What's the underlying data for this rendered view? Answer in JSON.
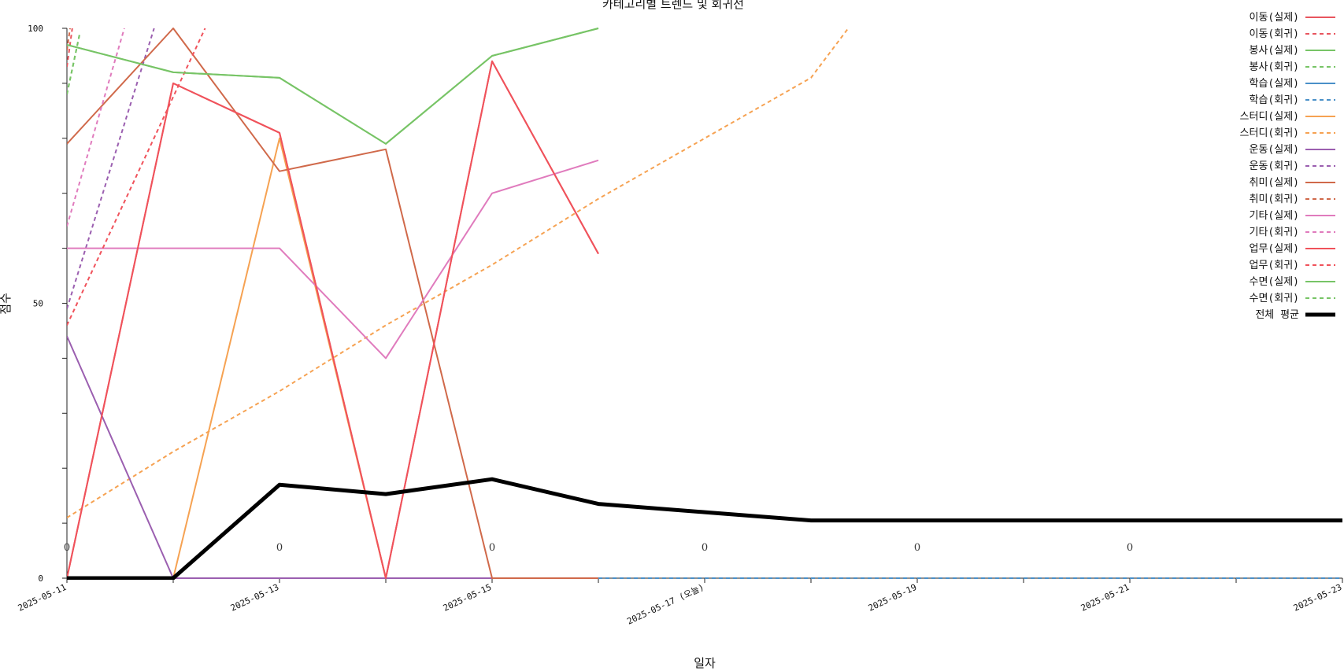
{
  "chart_data": {
    "type": "line",
    "title": "카테고리별 트렌드 및 회귀선",
    "xlabel": "일자",
    "ylabel": "점수",
    "ylim": [
      0,
      100
    ],
    "y_ticks": [
      0,
      50,
      100
    ],
    "x_tick_dates": [
      "2025-05-11",
      "2025-05-12",
      "2025-05-13",
      "2025-05-14",
      "2025-05-15",
      "2025-05-16",
      "2025-05-17",
      "2025-05-18",
      "2025-05-19",
      "2025-05-20",
      "2025-05-21",
      "2025-05-22",
      "2025-05-23"
    ],
    "x_tick_labels": [
      "2025-05-11",
      "2025-05-13",
      "2025-05-15",
      "2025-05-17 (오늘)",
      "2025-05-19",
      "2025-05-21",
      "2025-05-23"
    ],
    "x_labeled_dates": [
      "2025-05-11",
      "2025-05-13",
      "2025-05-15",
      "2025-05-17",
      "2025-05-19",
      "2025-05-21",
      "2025-05-23"
    ],
    "annotations": [
      {
        "x": "2025-05-11",
        "y": 5,
        "text": "0"
      },
      {
        "x": "2025-05-13",
        "y": 5,
        "text": "0"
      },
      {
        "x": "2025-05-15",
        "y": 5,
        "text": "0"
      },
      {
        "x": "2025-05-17",
        "y": 5,
        "text": "0"
      },
      {
        "x": "2025-05-19",
        "y": 5,
        "text": "0"
      },
      {
        "x": "2025-05-21",
        "y": 5,
        "text": "0"
      }
    ],
    "legend_position": "top-right",
    "series": [
      {
        "name": "이동(실제)",
        "color": "#e8555e",
        "style": "solid",
        "width": 2,
        "points": [
          [
            "2025-05-11",
            0
          ],
          [
            "2025-05-12",
            90
          ],
          [
            "2025-05-13",
            81
          ],
          [
            "2025-05-14",
            0
          ],
          [
            "2025-05-15",
            94
          ],
          [
            "2025-05-16",
            59
          ]
        ]
      },
      {
        "name": "이동(회귀)",
        "color": "#e8555e",
        "style": "dashed",
        "width": 2,
        "points": [
          [
            "2025-05-11",
            93
          ],
          [
            "2025-05-11.05",
            100
          ]
        ]
      },
      {
        "name": "봉사(실제)",
        "color": "#77c466",
        "style": "solid",
        "width": 2,
        "points": [
          [
            "2025-05-11",
            97
          ],
          [
            "2025-05-12",
            92
          ],
          [
            "2025-05-13",
            91
          ],
          [
            "2025-05-14",
            79
          ],
          [
            "2025-05-15",
            95
          ],
          [
            "2025-05-16",
            100
          ]
        ]
      },
      {
        "name": "봉사(회귀)",
        "color": "#77c466",
        "style": "dashed",
        "width": 2,
        "points": [
          [
            "2025-05-11",
            88
          ],
          [
            "2025-05-11.12",
            99
          ]
        ]
      },
      {
        "name": "학습(실제)",
        "color": "#4a90c8",
        "style": "solid",
        "width": 2,
        "points": [
          [
            "2025-05-11",
            0
          ],
          [
            "2025-05-12",
            0
          ],
          [
            "2025-05-13",
            0
          ],
          [
            "2025-05-14",
            0
          ],
          [
            "2025-05-15",
            0
          ],
          [
            "2025-05-16",
            0
          ]
        ]
      },
      {
        "name": "학습(회귀)",
        "color": "#4a90c8",
        "style": "dashed",
        "width": 2,
        "points": [
          [
            "2025-05-16",
            0
          ],
          [
            "2025-05-23",
            0
          ]
        ]
      },
      {
        "name": "스터디(실제)",
        "color": "#f6a252",
        "style": "solid",
        "width": 2,
        "points": [
          [
            "2025-05-11",
            0
          ],
          [
            "2025-05-12",
            0
          ],
          [
            "2025-05-13",
            80
          ],
          [
            "2025-05-14",
            0
          ],
          [
            "2025-05-15",
            0
          ],
          [
            "2025-05-16",
            0
          ]
        ]
      },
      {
        "name": "스터디(회귀)",
        "color": "#f6a252",
        "style": "dashed",
        "width": 2,
        "points": [
          [
            "2025-05-11",
            11
          ],
          [
            "2025-05-12",
            23
          ],
          [
            "2025-05-13",
            34
          ],
          [
            "2025-05-14",
            46
          ],
          [
            "2025-05-15",
            57
          ],
          [
            "2025-05-16",
            69
          ],
          [
            "2025-05-17",
            80
          ],
          [
            "2025-05-18",
            91
          ],
          [
            "2025-05-18.35",
            100
          ]
        ]
      },
      {
        "name": "운동(실제)",
        "color": "#9b5fb0",
        "style": "solid",
        "width": 2,
        "points": [
          [
            "2025-05-11",
            44
          ],
          [
            "2025-05-12",
            0
          ],
          [
            "2025-05-13",
            0
          ],
          [
            "2025-05-14",
            0
          ],
          [
            "2025-05-15",
            0
          ],
          [
            "2025-05-16",
            0
          ]
        ]
      },
      {
        "name": "운동(회귀)",
        "color": "#9b5fb0",
        "style": "dashed",
        "width": 2,
        "points": [
          [
            "2025-05-11",
            49
          ],
          [
            "2025-05-11.82",
            100
          ]
        ]
      },
      {
        "name": "취미(실제)",
        "color": "#d0694a",
        "style": "solid",
        "width": 2,
        "points": [
          [
            "2025-05-11",
            79
          ],
          [
            "2025-05-12",
            100
          ],
          [
            "2025-05-13",
            74
          ],
          [
            "2025-05-14",
            78
          ],
          [
            "2025-05-15",
            0
          ],
          [
            "2025-05-16",
            0
          ]
        ]
      },
      {
        "name": "취미(회귀)",
        "color": "#d0694a",
        "style": "dashed",
        "width": 2,
        "points": [
          [
            "2025-05-11",
            96
          ],
          [
            "2025-05-11.03",
            100
          ]
        ]
      },
      {
        "name": "기타(실제)",
        "color": "#e07bbd",
        "style": "solid",
        "width": 2,
        "points": [
          [
            "2025-05-11",
            60
          ],
          [
            "2025-05-12",
            60
          ],
          [
            "2025-05-13",
            60
          ],
          [
            "2025-05-14",
            40
          ],
          [
            "2025-05-15",
            70
          ],
          [
            "2025-05-16",
            76
          ]
        ]
      },
      {
        "name": "기타(회귀)",
        "color": "#e07bbd",
        "style": "dashed",
        "width": 2,
        "points": [
          [
            "2025-05-11",
            64
          ],
          [
            "2025-05-11.54",
            100
          ]
        ]
      },
      {
        "name": "업무(실제)",
        "color": "#f0525b",
        "style": "solid",
        "width": 2,
        "points": [
          [
            "2025-05-11",
            0
          ],
          [
            "2025-05-12",
            90
          ],
          [
            "2025-05-13",
            81
          ],
          [
            "2025-05-14",
            0
          ],
          [
            "2025-05-15",
            94
          ],
          [
            "2025-05-16",
            59
          ]
        ]
      },
      {
        "name": "업무(회귀)",
        "color": "#f0525b",
        "style": "dashed",
        "width": 2,
        "points": [
          [
            "2025-05-11",
            46
          ],
          [
            "2025-05-12.3",
            100
          ]
        ]
      },
      {
        "name": "수면(실제)",
        "color": "#77c466",
        "style": "solid",
        "width": 2,
        "points": [
          [
            "2025-05-11",
            97
          ],
          [
            "2025-05-12",
            92
          ],
          [
            "2025-05-13",
            91
          ],
          [
            "2025-05-14",
            79
          ],
          [
            "2025-05-15",
            95
          ],
          [
            "2025-05-16",
            100
          ]
        ]
      },
      {
        "name": "수면(회귀)",
        "color": "#77c466",
        "style": "dashed",
        "width": 2,
        "points": [
          [
            "2025-05-11",
            88
          ],
          [
            "2025-05-11.12",
            99
          ]
        ]
      },
      {
        "name": "전체 평균",
        "color": "#000000",
        "style": "solid",
        "width": 5,
        "points": [
          [
            "2025-05-11",
            0
          ],
          [
            "2025-05-12",
            0
          ],
          [
            "2025-05-13",
            17
          ],
          [
            "2025-05-14",
            15.3
          ],
          [
            "2025-05-15",
            18
          ],
          [
            "2025-05-16",
            13.5
          ],
          [
            "2025-05-17",
            12
          ],
          [
            "2025-05-18",
            10.5
          ],
          [
            "2025-05-19",
            10.5
          ],
          [
            "2025-05-20",
            10.5
          ],
          [
            "2025-05-21",
            10.5
          ],
          [
            "2025-05-22",
            10.5
          ],
          [
            "2025-05-23",
            10.5
          ]
        ]
      }
    ]
  }
}
